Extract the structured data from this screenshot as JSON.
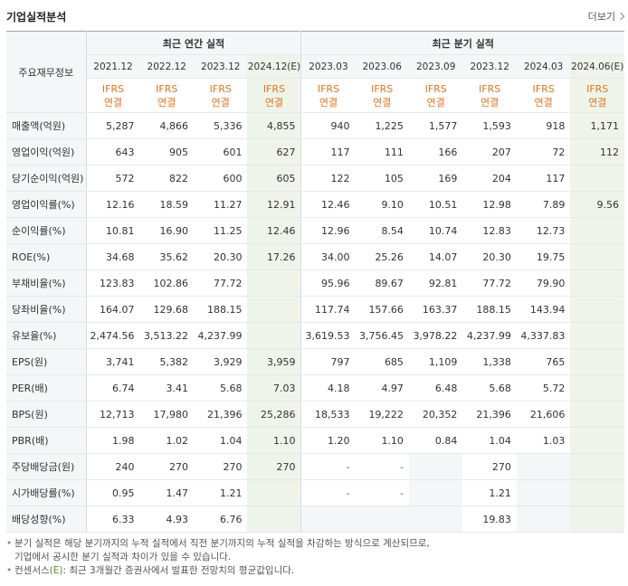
{
  "header": {
    "title": "기업실적분석",
    "more_label": "더보기"
  },
  "table": {
    "corner_label": "주요재무정보",
    "group_annual": "최근 연간 실적",
    "group_quarter": "최근 분기 실적",
    "periods": [
      "2021.12",
      "2022.12",
      "2023.12",
      "2024.12(E)",
      "2023.03",
      "2023.06",
      "2023.09",
      "2023.12",
      "2024.03",
      "2024.06(E)"
    ],
    "ifrs_line1": "IFRS",
    "ifrs_line2": "연결",
    "rows": [
      {
        "label": "매출액(억원)",
        "values": [
          "5,287",
          "4,866",
          "5,336",
          "4,855",
          "940",
          "1,225",
          "1,577",
          "1,593",
          "918",
          "1,171"
        ]
      },
      {
        "label": "영업이익(억원)",
        "values": [
          "643",
          "905",
          "601",
          "627",
          "117",
          "111",
          "166",
          "207",
          "72",
          "112"
        ]
      },
      {
        "label": "당기순이익(억원)",
        "values": [
          "572",
          "822",
          "600",
          "605",
          "122",
          "105",
          "169",
          "204",
          "117",
          ""
        ]
      },
      {
        "label": "영업이익률(%)",
        "values": [
          "12.16",
          "18.59",
          "11.27",
          "12.91",
          "12.46",
          "9.10",
          "10.51",
          "12.98",
          "7.89",
          "9.56"
        ]
      },
      {
        "label": "순이익률(%)",
        "values": [
          "10.81",
          "16.90",
          "11.25",
          "12.46",
          "12.96",
          "8.54",
          "10.74",
          "12.83",
          "12.73",
          ""
        ]
      },
      {
        "label": "ROE(%)",
        "values": [
          "34.68",
          "35.62",
          "20.30",
          "17.26",
          "34.00",
          "25.26",
          "14.07",
          "20.30",
          "19.75",
          ""
        ]
      },
      {
        "label": "부채비율(%)",
        "values": [
          "123.83",
          "102.86",
          "77.72",
          "",
          "95.96",
          "89.67",
          "92.81",
          "77.72",
          "79.90",
          ""
        ]
      },
      {
        "label": "당좌비율(%)",
        "values": [
          "164.07",
          "129.68",
          "188.15",
          "",
          "117.74",
          "157.66",
          "163.37",
          "188.15",
          "143.94",
          ""
        ]
      },
      {
        "label": "유보율(%)",
        "values": [
          "2,474.56",
          "3,513.22",
          "4,237.99",
          "",
          "3,619.53",
          "3,756.45",
          "3,978.22",
          "4,237.99",
          "4,337.83",
          ""
        ]
      },
      {
        "label": "EPS(원)",
        "values": [
          "3,741",
          "5,382",
          "3,929",
          "3,959",
          "797",
          "685",
          "1,109",
          "1,338",
          "765",
          ""
        ]
      },
      {
        "label": "PER(배)",
        "values": [
          "6.74",
          "3.41",
          "5.68",
          "7.03",
          "4.18",
          "4.97",
          "6.48",
          "5.68",
          "5.72",
          ""
        ]
      },
      {
        "label": "BPS(원)",
        "values": [
          "12,713",
          "17,980",
          "21,396",
          "25,286",
          "18,533",
          "19,222",
          "20,352",
          "21,396",
          "21,606",
          ""
        ]
      },
      {
        "label": "PBR(배)",
        "values": [
          "1.98",
          "1.02",
          "1.04",
          "1.10",
          "1.20",
          "1.10",
          "0.84",
          "1.04",
          "1.03",
          ""
        ]
      },
      {
        "label": "주당배당금(원)",
        "values": [
          "240",
          "270",
          "270",
          "270",
          "-",
          "-",
          "",
          "270",
          "",
          ""
        ]
      },
      {
        "label": "시가배당률(%)",
        "values": [
          "0.95",
          "1.47",
          "1.21",
          "",
          "-",
          "-",
          "",
          "1.21",
          "",
          ""
        ]
      },
      {
        "label": "배당성향(%)",
        "values": [
          "6.33",
          "4.93",
          "6.76",
          "",
          "",
          "",
          "",
          "19.83",
          "",
          ""
        ]
      }
    ]
  },
  "notes": {
    "line1": "분기 실적은 해당 분기까지의 누적 실적에서 직전 분기까지의 누적 실적을 차감하는 방식으로 계산되므로,",
    "line2": "기업에서 공시한 분기 실적과 차이가 있을 수 있습니다.",
    "line3_prefix": "컨센서스",
    "line3_e": "(E)",
    "line3_rest": ": 최근 3개월간 증권사에서 발표한 전망치의 평균값입니다."
  }
}
